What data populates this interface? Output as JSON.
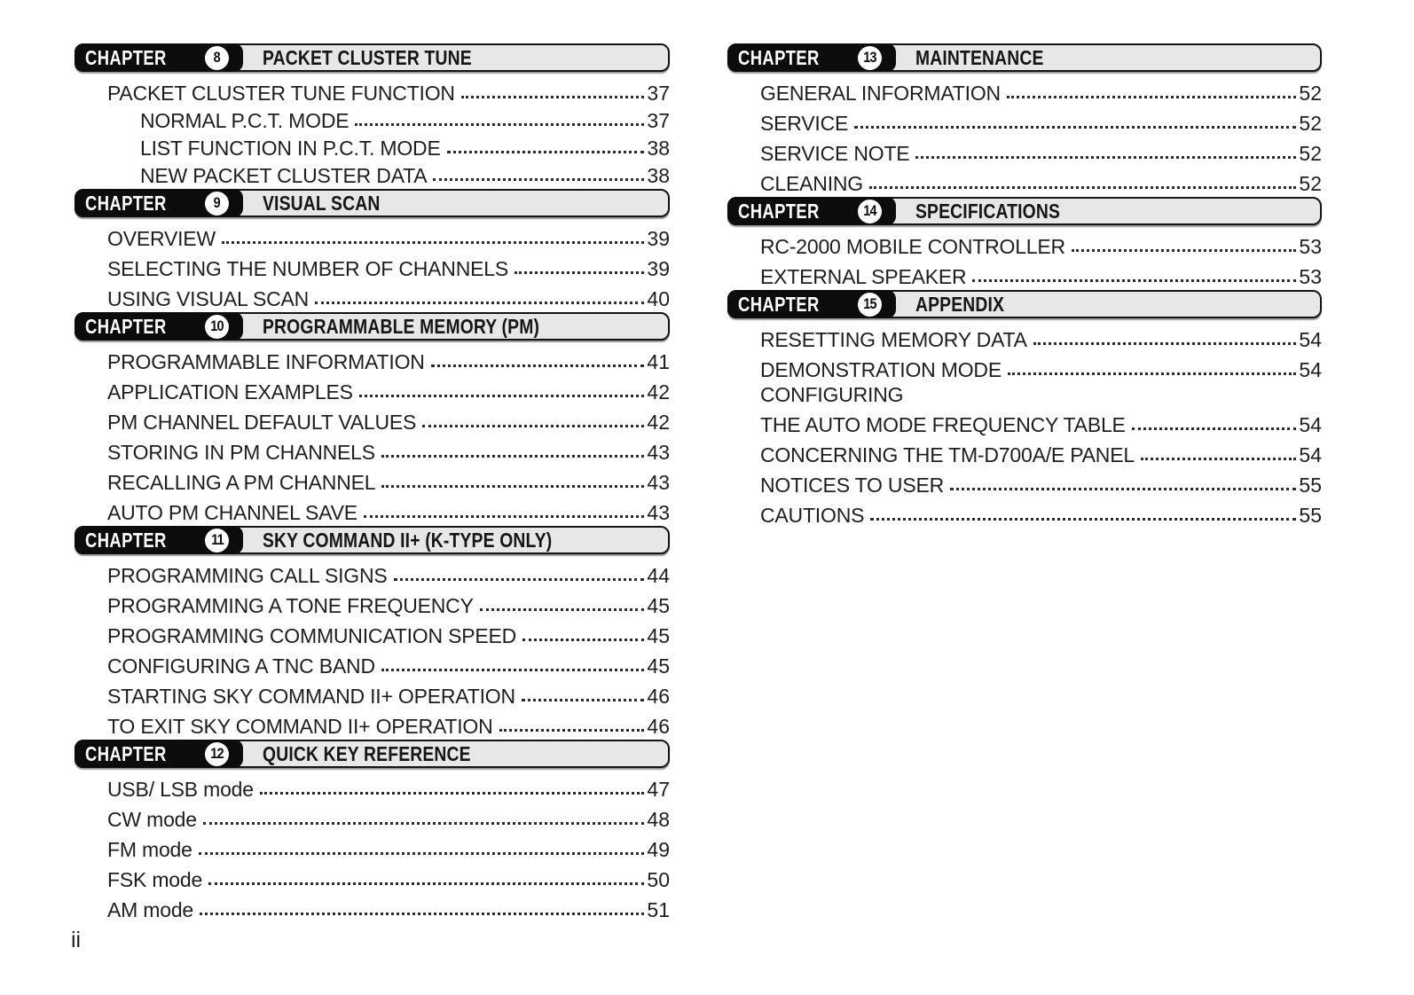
{
  "page": {
    "footer_page_label": "ii"
  },
  "style_colors": {
    "header_bar_fill": "#e7e7e7",
    "header_pill_fill": "#0c0c0c",
    "header_border": "#141414",
    "text": "#1e1e1e"
  },
  "columns": [
    {
      "side": "left",
      "sections": [
        {
          "chapter_label": "CHAPTER",
          "number": "8",
          "title": "PACKET CLUSTER TUNE",
          "entries": [
            {
              "label": "PACKET CLUSTER TUNE FUNCTION",
              "page": "37",
              "indent": 0
            },
            {
              "label": "NORMAL P.C.T. MODE",
              "page": "37",
              "indent": 1
            },
            {
              "label": "LIST FUNCTION IN P.C.T. MODE",
              "page": "38",
              "indent": 1
            },
            {
              "label": "NEW PACKET CLUSTER DATA",
              "page": "38",
              "indent": 1
            }
          ]
        },
        {
          "chapter_label": "CHAPTER",
          "number": "9",
          "title": "VISUAL SCAN",
          "entries": [
            {
              "label": "OVERVIEW",
              "page": "39",
              "indent": 0
            },
            {
              "label": "SELECTING THE NUMBER OF CHANNELS",
              "page": "39",
              "indent": 0
            },
            {
              "label": "USING VISUAL SCAN",
              "page": "40",
              "indent": 0
            }
          ]
        },
        {
          "chapter_label": "CHAPTER",
          "number": "10",
          "title": "PROGRAMMABLE MEMORY (PM)",
          "entries": [
            {
              "label": "PROGRAMMABLE INFORMATION",
              "page": "41",
              "indent": 0
            },
            {
              "label": "APPLICATION EXAMPLES",
              "page": "42",
              "indent": 0
            },
            {
              "label": "PM CHANNEL DEFAULT VALUES",
              "page": "42",
              "indent": 0
            },
            {
              "label": "STORING IN PM CHANNELS",
              "page": "43",
              "indent": 0
            },
            {
              "label": "RECALLING A PM CHANNEL",
              "page": "43",
              "indent": 0
            },
            {
              "label": "AUTO PM CHANNEL SAVE",
              "page": "43",
              "indent": 0
            }
          ]
        },
        {
          "chapter_label": "CHAPTER",
          "number": "11",
          "title": "SKY COMMAND II+ (K-TYPE ONLY)",
          "entries": [
            {
              "label": "PROGRAMMING CALL SIGNS",
              "page": "44",
              "indent": 0
            },
            {
              "label": "PROGRAMMING A TONE FREQUENCY",
              "page": "45",
              "indent": 0
            },
            {
              "label": "PROGRAMMING COMMUNICATION SPEED",
              "page": "45",
              "indent": 0
            },
            {
              "label": "CONFIGURING A TNC BAND",
              "page": "45",
              "indent": 0
            },
            {
              "label": "STARTING SKY COMMAND II+ OPERATION",
              "page": "46",
              "indent": 0
            },
            {
              "label": "TO EXIT SKY COMMAND II+ OPERATION",
              "page": "46",
              "indent": 0
            }
          ]
        },
        {
          "chapter_label": "CHAPTER",
          "number": "12",
          "title": "QUICK KEY REFERENCE",
          "entries": [
            {
              "label": "USB/ LSB mode",
              "page": "47",
              "indent": 0
            },
            {
              "label": "CW mode",
              "page": "48",
              "indent": 0
            },
            {
              "label": "FM mode",
              "page": "49",
              "indent": 0
            },
            {
              "label": "FSK mode",
              "page": "50",
              "indent": 0
            },
            {
              "label": "AM mode",
              "page": "51",
              "indent": 0
            }
          ]
        }
      ]
    },
    {
      "side": "right",
      "sections": [
        {
          "chapter_label": "CHAPTER",
          "number": "13",
          "title": "MAINTENANCE",
          "entries": [
            {
              "label": "GENERAL INFORMATION",
              "page": "52",
              "indent": 0
            },
            {
              "label": "SERVICE",
              "page": "52",
              "indent": 0
            },
            {
              "label": "SERVICE NOTE",
              "page": "52",
              "indent": 0
            },
            {
              "label": "CLEANING",
              "page": "52",
              "indent": 0
            }
          ]
        },
        {
          "chapter_label": "CHAPTER",
          "number": "14",
          "title": "SPECIFICATIONS",
          "entries": [
            {
              "label": "RC-2000 MOBILE CONTROLLER",
              "page": "53",
              "indent": 0
            },
            {
              "label": "EXTERNAL SPEAKER",
              "page": "53",
              "indent": 0
            }
          ]
        },
        {
          "chapter_label": "CHAPTER",
          "number": "15",
          "title": "APPENDIX",
          "entries": [
            {
              "label": "RESETTING MEMORY DATA",
              "page": "54",
              "indent": 0
            },
            {
              "label": "DEMONSTRATION MODE",
              "page": "54",
              "indent": 0
            },
            {
              "label": "CONFIGURING",
              "page": "",
              "indent": 0,
              "dots": false,
              "tight": true
            },
            {
              "label": "THE AUTO MODE FREQUENCY TABLE",
              "page": "54",
              "indent": 0
            },
            {
              "label": "CONCERNING THE TM-D700A/E PANEL",
              "page": "54",
              "indent": 0
            },
            {
              "label": "NOTICES TO USER",
              "page": "55",
              "indent": 0
            },
            {
              "label": "CAUTIONS",
              "page": "55",
              "indent": 0
            }
          ]
        }
      ]
    }
  ]
}
